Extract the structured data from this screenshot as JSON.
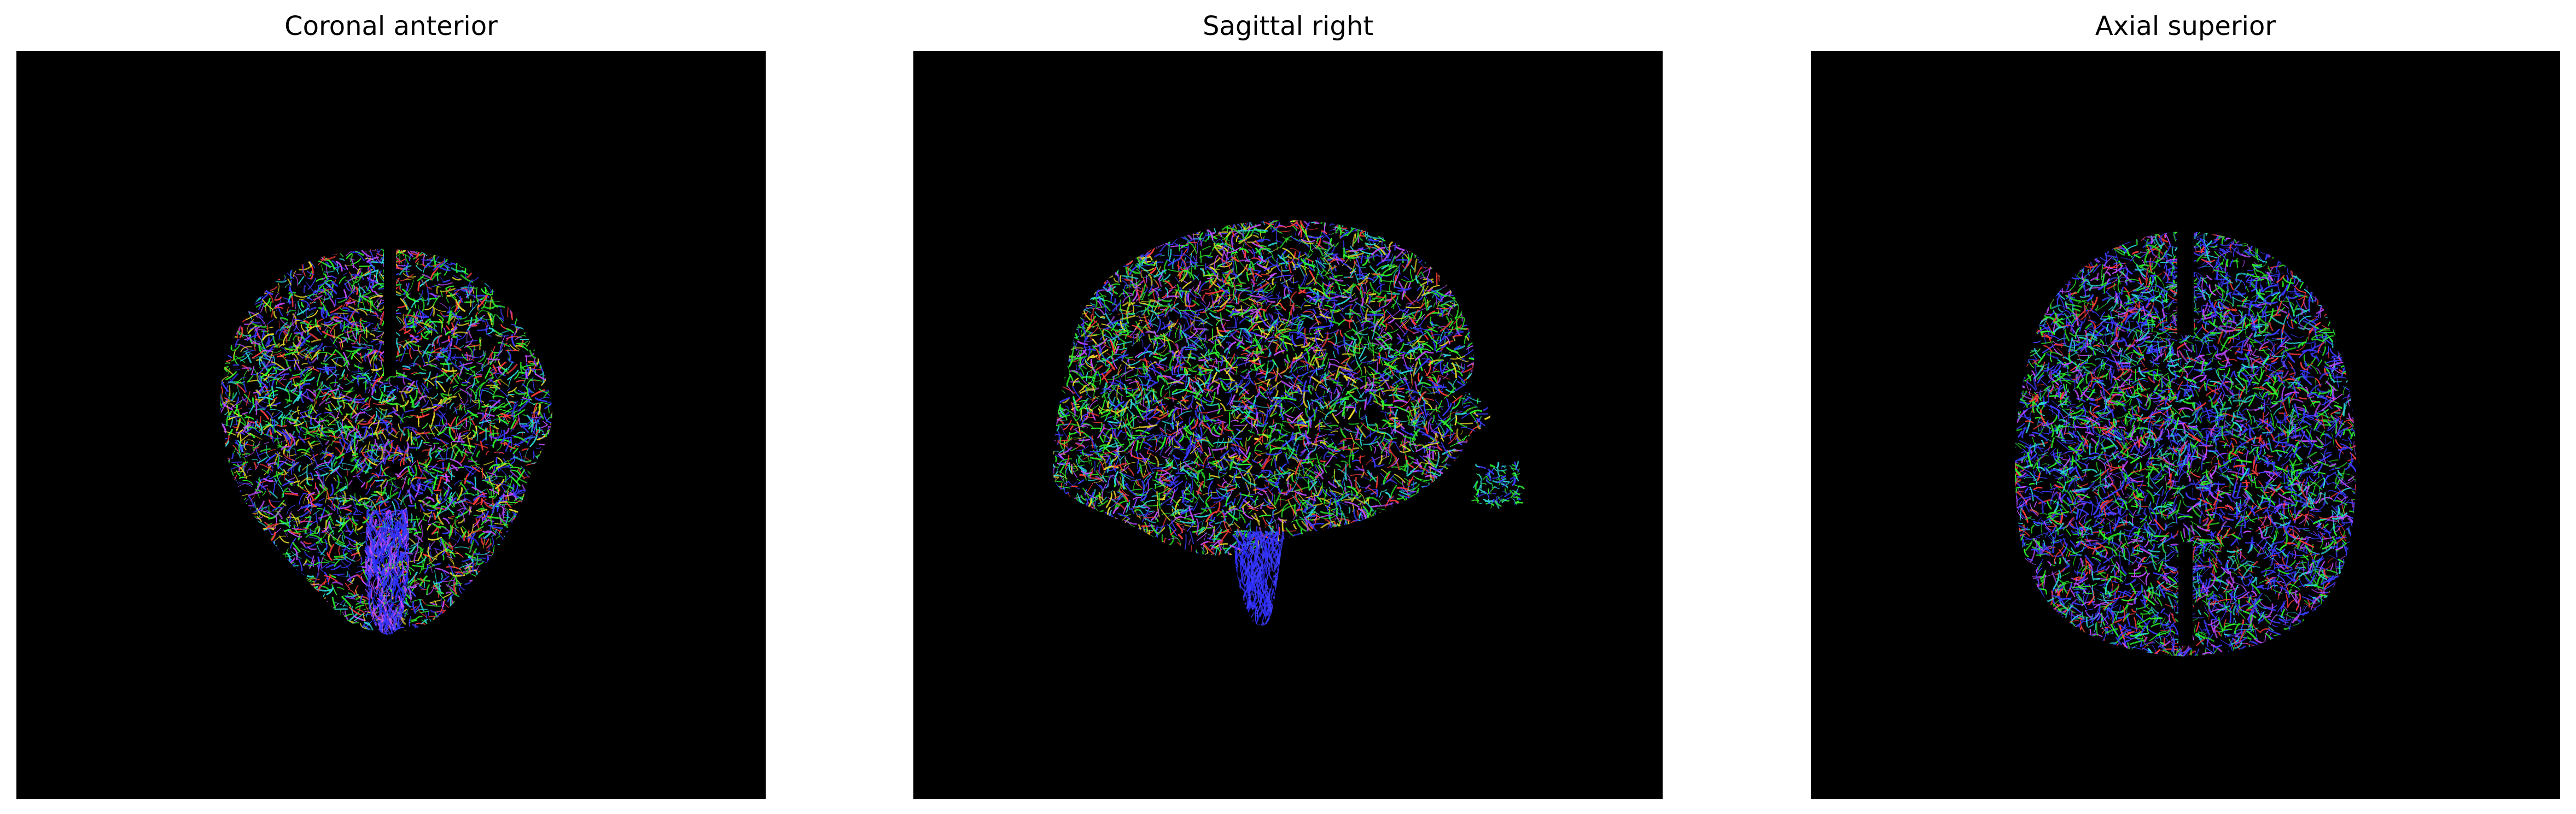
{
  "panels": [
    {
      "title": "Coronal anterior",
      "view": "coronal"
    },
    {
      "title": "Sagittal right",
      "view": "sagittal"
    },
    {
      "title": "Axial superior",
      "view": "axial"
    }
  ],
  "colors": {
    "background": "#000000",
    "fiber_red": "#ff3b3b",
    "fiber_green": "#2cf02c",
    "fiber_blue": "#3a3aff",
    "fiber_magenta": "#c04cff",
    "fiber_cyan": "#2ad6d6",
    "fiber_yellow": "#e6d82a"
  }
}
